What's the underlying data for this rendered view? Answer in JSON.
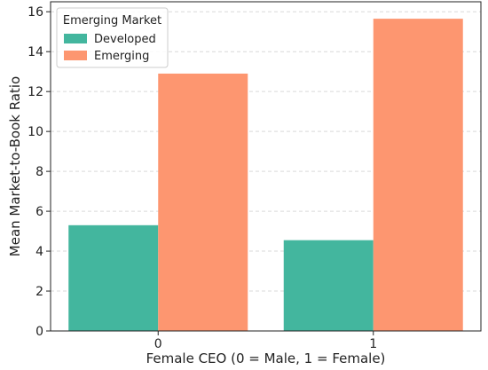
{
  "chart_data": {
    "type": "bar",
    "xlabel": "Female CEO (0 = Male, 1 = Female)",
    "ylabel": "Mean Market-to-Book Ratio",
    "categories": [
      "0",
      "1"
    ],
    "ylim": [
      0,
      16.5
    ],
    "yticks": [
      0,
      2,
      4,
      6,
      8,
      10,
      12,
      14,
      16
    ],
    "grid": "horizontal dashed",
    "legend": {
      "title": "Emerging Market",
      "placement": "top-left"
    },
    "series": [
      {
        "name": "Developed",
        "color": "#43b69e",
        "values": [
          5.3,
          4.55
        ]
      },
      {
        "name": "Emerging",
        "color": "#fd9670",
        "values": [
          12.9,
          15.65
        ]
      }
    ]
  }
}
